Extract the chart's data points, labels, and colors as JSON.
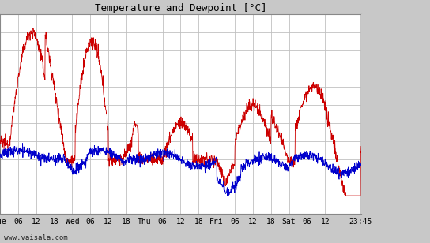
{
  "title": "Temperature and Dewpoint [°C]",
  "ylim": [
    12,
    34
  ],
  "yticks": [
    12,
    14,
    16,
    18,
    20,
    22,
    24,
    26,
    28,
    30,
    32,
    34
  ],
  "bg_color": "#ffffff",
  "plot_bg": "#ffffff",
  "right_panel_color": "#c8c8c8",
  "grid_color": "#c0c0c0",
  "temp_color": "#cc0000",
  "dew_color": "#0000cc",
  "watermark": "www.vaisala.com",
  "x_tick_positions": [
    0,
    6,
    12,
    18,
    24,
    30,
    36,
    42,
    48,
    54,
    60,
    66,
    72,
    78,
    84,
    90,
    96,
    102,
    108,
    119.75
  ],
  "x_tick_labels": [
    "Tue",
    "06",
    "12",
    "18",
    "Wed",
    "06",
    "12",
    "18",
    "Thu",
    "06",
    "12",
    "18",
    "Fri",
    "06",
    "12",
    "18",
    "Sat",
    "06",
    "12",
    "23:45"
  ],
  "xlim": [
    0,
    120
  ],
  "n_points": 1440,
  "duration_hours": 120
}
